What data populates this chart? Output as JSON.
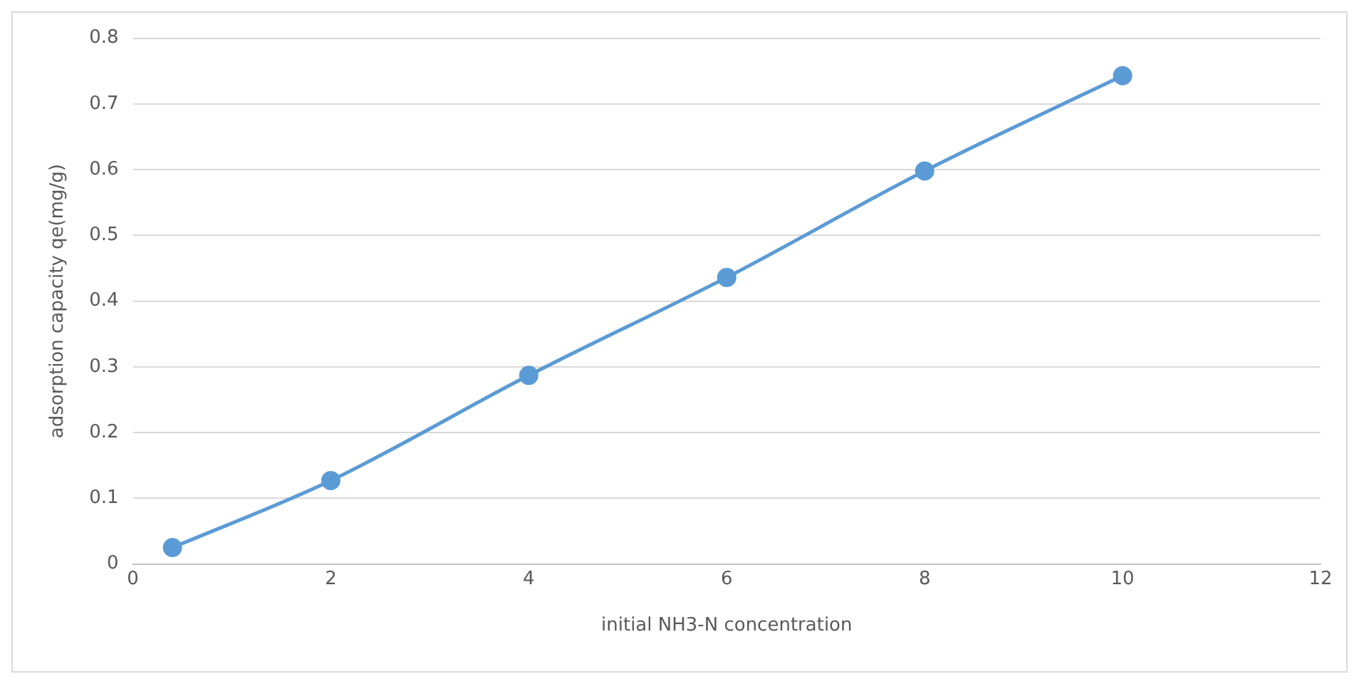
{
  "chart_data": {
    "type": "line",
    "xlabel": "initial NH3-N concentration",
    "ylabel": "adsorption capacity qe(mg/g)",
    "x": [
      0.4,
      2,
      4,
      6,
      8,
      10
    ],
    "series": [
      {
        "color": "#5b9bd5",
        "values": [
          0.025,
          0.127,
          0.287,
          0.436,
          0.598,
          0.743
        ]
      }
    ],
    "xlim": [
      0,
      12
    ],
    "xticks": [
      0,
      2,
      4,
      6,
      8,
      10,
      12
    ],
    "ylim": [
      0,
      0.8
    ],
    "yticks": [
      0,
      0.1,
      0.2,
      0.3,
      0.4,
      0.5,
      0.6,
      0.7,
      0.8
    ],
    "grid": "y",
    "legend": false,
    "marker": "circle",
    "line_style": "solid"
  }
}
